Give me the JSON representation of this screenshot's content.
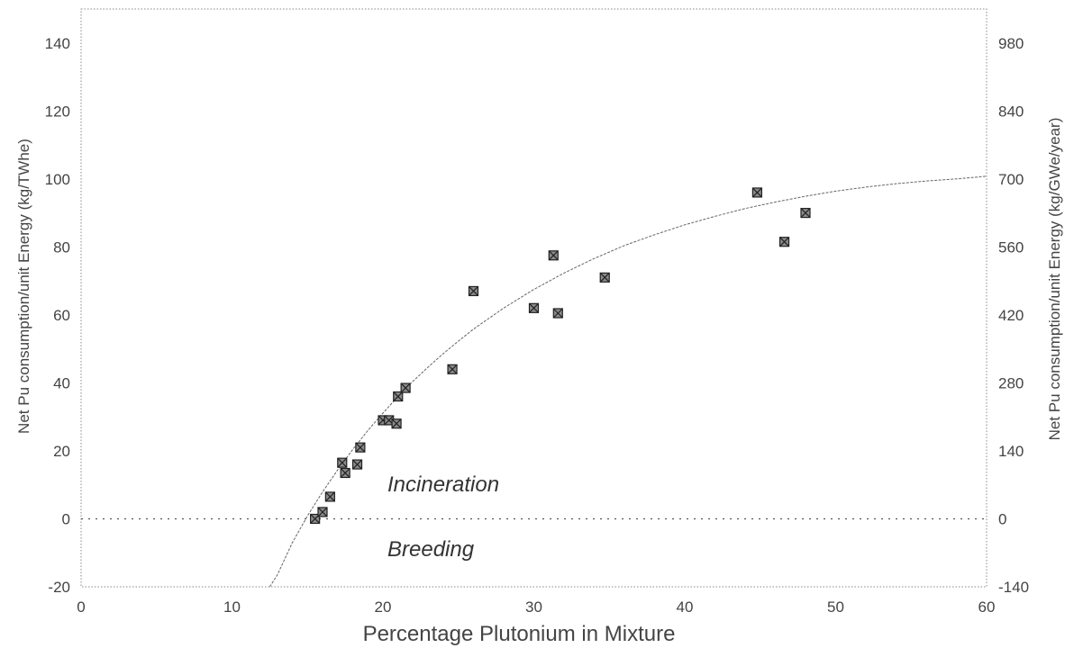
{
  "chart_data": {
    "type": "scatter",
    "title": "",
    "xlabel": "Percentage Plutonium in Mixture",
    "ylabel": "Net Pu consumption/unit Energy  (kg/TWhe)",
    "y2label": "Net Pu consumption/unit Energy  (kg/GWe/year)",
    "xlim": [
      0,
      60
    ],
    "ylim": [
      -20,
      150
    ],
    "y2lim": [
      -140,
      1050
    ],
    "x_ticks": [
      "0",
      "10",
      "20",
      "30",
      "40",
      "50",
      "60"
    ],
    "y_ticks": [
      "-20",
      "0",
      "20",
      "40",
      "60",
      "80",
      "100",
      "120",
      "140"
    ],
    "y2_ticks": [
      "-140",
      "0",
      "140",
      "280",
      "420",
      "560",
      "700",
      "840",
      "980"
    ],
    "grid": false,
    "zero_line": true,
    "annotations": [
      {
        "text": "Incineration",
        "x": 26,
        "y": 12
      },
      {
        "text": "Breeding",
        "x": 26,
        "y": -9
      }
    ],
    "series": [
      {
        "points": [
          {
            "x": 15.5,
            "y": 0
          },
          {
            "x": 16.0,
            "y": 2
          },
          {
            "x": 16.5,
            "y": 6.5
          },
          {
            "x": 17.3,
            "y": 16.5
          },
          {
            "x": 17.5,
            "y": 13.5
          },
          {
            "x": 18.3,
            "y": 16
          },
          {
            "x": 18.5,
            "y": 21
          },
          {
            "x": 20.0,
            "y": 29
          },
          {
            "x": 20.4,
            "y": 29
          },
          {
            "x": 20.9,
            "y": 28
          },
          {
            "x": 21.0,
            "y": 36
          },
          {
            "x": 21.5,
            "y": 38.5
          },
          {
            "x": 24.6,
            "y": 44
          },
          {
            "x": 26.0,
            "y": 67
          },
          {
            "x": 30.0,
            "y": 62
          },
          {
            "x": 31.3,
            "y": 77.5
          },
          {
            "x": 31.6,
            "y": 60.5
          },
          {
            "x": 34.7,
            "y": 71
          },
          {
            "x": 44.8,
            "y": 96
          },
          {
            "x": 46.6,
            "y": 81.5
          },
          {
            "x": 48.0,
            "y": 90
          }
        ]
      },
      {
        "type": "line",
        "style": "fit-curve",
        "x": [
          12.5,
          13,
          14,
          15,
          15.5,
          16,
          17,
          18,
          19,
          20,
          21,
          22,
          23,
          24,
          25,
          26,
          28,
          30,
          32,
          34,
          36,
          38,
          40,
          42,
          44,
          46,
          48,
          50,
          52,
          54,
          56,
          58,
          60
        ],
        "values": [
          -20,
          -16.5,
          -7,
          0.9,
          4.4,
          7.9,
          14.4,
          20.4,
          26,
          31.1,
          36,
          40.5,
          44.7,
          48.6,
          52.3,
          55.8,
          62,
          67.5,
          72.3,
          76.6,
          80.4,
          83.6,
          86.5,
          89,
          91.3,
          93.2,
          94.9,
          96.4,
          97.6,
          98.6,
          99.4,
          100,
          100.8
        ]
      }
    ]
  }
}
